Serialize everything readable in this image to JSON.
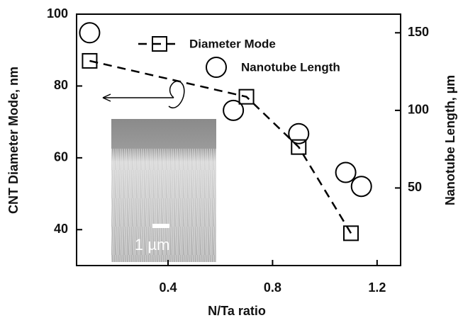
{
  "chart_data": {
    "type": "scatter",
    "x_label": "N/Ta ratio",
    "y_label": "CNT Diameter Mode, nm",
    "y2_label": "Nanotube Length, µm",
    "xlim": [
      0.05,
      1.29
    ],
    "xticks": [
      0.4,
      0.8,
      1.2
    ],
    "ylim": [
      30,
      100
    ],
    "yticks": [
      40,
      60,
      80,
      100
    ],
    "y2lim": [
      0,
      162
    ],
    "y2ticks": [
      50,
      100,
      150
    ],
    "inset_label": "1 µm",
    "series": [
      {
        "name": "Diameter Mode",
        "color": "#000000",
        "marker": "square",
        "line": "dashed",
        "x": [
          0.1,
          0.7,
          0.9,
          1.1
        ],
        "values": [
          87,
          77,
          63,
          39
        ]
      },
      {
        "name": "Nanotube Length",
        "color": "#000000",
        "marker": "circle",
        "axis": "y2",
        "x": [
          0.1,
          0.65,
          0.9,
          1.08,
          1.14
        ],
        "values": [
          150,
          100,
          85,
          60,
          51
        ]
      }
    ]
  }
}
